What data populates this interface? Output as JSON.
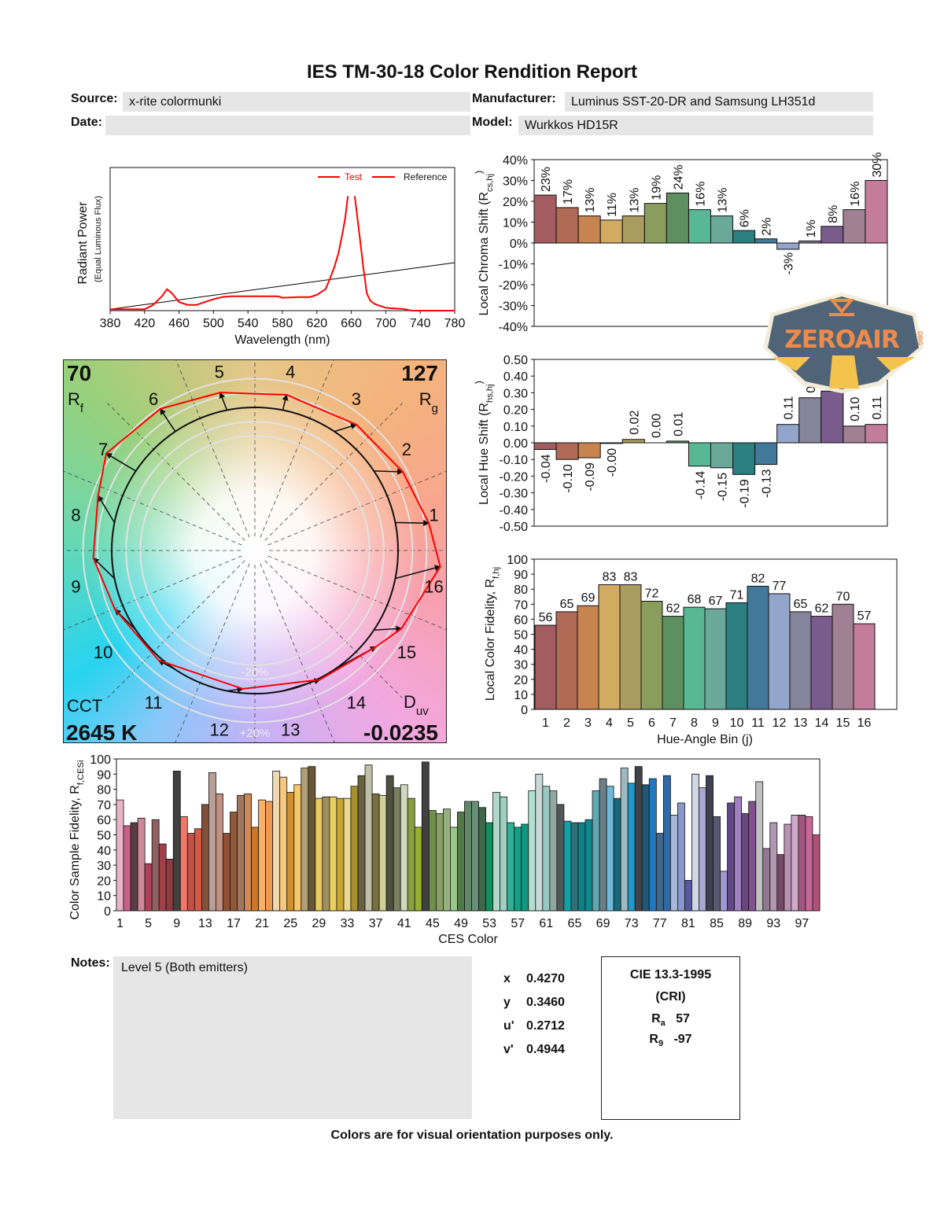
{
  "header": {
    "title": "IES TM-30-18 Color Rendition Report",
    "source_label": "Source:",
    "source_value": "x-rite colormunki",
    "manufacturer_label": "Manufacturer:",
    "manufacturer_value": "Luminus SST-20-DR and Samsung LH351d",
    "date_label": "Date:",
    "date_value": "",
    "model_label": "Model:",
    "model_value": "Wurkkos HD15R"
  },
  "watermark": {
    "text": "ZEROAIR",
    "suffix": "ORG",
    "colors": {
      "badge": "#4f6577",
      "letters": "#f08a4a",
      "rays": "#f4c34e",
      "border": "#f3ecd8"
    }
  },
  "vector_graphic": {
    "rf_value": "70",
    "rf_label": "R",
    "rf_sub": "f",
    "rg_value": "127",
    "rg_label": "R",
    "rg_sub": "g",
    "cct_label": "CCT",
    "cct_value": "2645 K",
    "duv_label": "D",
    "duv_sub": "uv",
    "duv_value": "-0.0235",
    "ring_plus_label": "+20%",
    "ring_minus_label": "-20%",
    "bin_labels": [
      "1",
      "2",
      "3",
      "4",
      "5",
      "6",
      "7",
      "8",
      "9",
      "10",
      "11",
      "12",
      "13",
      "14",
      "15",
      "16"
    ]
  },
  "chart_data": [
    {
      "id": "spectrum",
      "type": "line",
      "xlabel": "Wavelength (nm)",
      "ylabel": "Radiant Power",
      "ylabel2": "(Equal Luminous Flux)",
      "xlim": [
        380,
        780
      ],
      "xticks": [
        380,
        420,
        460,
        500,
        540,
        580,
        620,
        660,
        700,
        740,
        780
      ],
      "legend": {
        "placement": "top-right",
        "entries": [
          "Test",
          "Reference"
        ]
      },
      "series": [
        {
          "name": "Test",
          "color": "#ff0000",
          "x": [
            380,
            400,
            420,
            430,
            440,
            446,
            452,
            460,
            470,
            480,
            490,
            500,
            510,
            520,
            540,
            560,
            575,
            580,
            600,
            612,
            620,
            630,
            635,
            640,
            645,
            650,
            653,
            656,
            null,
            664,
            667,
            670,
            674,
            678,
            682,
            686,
            690,
            700,
            710,
            720,
            730,
            740,
            760,
            780
          ],
          "y": [
            0.01,
            0.01,
            0.01,
            0.04,
            0.1,
            0.15,
            0.12,
            0.06,
            0.04,
            0.04,
            0.06,
            0.08,
            0.095,
            0.1,
            0.1,
            0.1,
            0.1,
            0.09,
            0.095,
            0.095,
            0.11,
            0.15,
            0.22,
            0.3,
            0.4,
            0.55,
            0.65,
            0.8,
            null,
            0.8,
            0.65,
            0.5,
            0.3,
            0.12,
            0.07,
            0.05,
            0.04,
            0.02,
            0.015,
            0.012,
            0.0,
            0.0,
            0.0,
            0.0
          ]
        },
        {
          "name": "Reference",
          "color": "#000000",
          "x": [
            380,
            780
          ],
          "y": [
            0.01,
            0.335
          ]
        }
      ]
    },
    {
      "id": "chroma_shift",
      "type": "bar",
      "ylabel": "Local Chroma Shift (R",
      "ylabel_sub": "cs,hj",
      "ylabel_end": ")",
      "ylim": [
        -40,
        40
      ],
      "yticks": [
        40,
        30,
        20,
        10,
        0,
        -10,
        -20,
        -30,
        -40
      ],
      "unit": "%",
      "categories": [
        1,
        2,
        3,
        4,
        5,
        6,
        7,
        8,
        9,
        10,
        11,
        12,
        13,
        14,
        15,
        16
      ],
      "values": [
        23,
        17,
        13,
        11,
        13,
        19,
        24,
        16,
        13,
        6,
        2,
        -3,
        1,
        8,
        16,
        30
      ]
    },
    {
      "id": "hue_shift",
      "type": "bar",
      "ylabel": "Local Hue Shift (R",
      "ylabel_sub": "hs,hj",
      "ylabel_end": ")",
      "ylim": [
        -0.5,
        0.5
      ],
      "yticks": [
        "0.50",
        "0.40",
        "0.30",
        "0.20",
        "0.10",
        "0.00",
        "-0.10",
        "-0.20",
        "-0.30",
        "-0.40",
        "-0.50"
      ],
      "categories": [
        1,
        2,
        3,
        4,
        5,
        6,
        7,
        8,
        9,
        10,
        11,
        12,
        13,
        14,
        15,
        16
      ],
      "values": [
        -0.04,
        -0.1,
        -0.09,
        -0.004,
        0.02,
        0.0,
        0.01,
        -0.14,
        -0.15,
        -0.19,
        -0.13,
        0.11,
        0.27,
        0.31,
        0.1,
        0.11
      ],
      "labels": [
        "-0.04",
        "-0.10",
        "-0.09",
        "-0.00",
        "0.02",
        "0.00",
        "0.01",
        "-0.14",
        "-0.15",
        "-0.19",
        "-0.13",
        "0.11",
        "0.27",
        "0.31",
        "0.10",
        "0.11"
      ]
    },
    {
      "id": "local_fidelity",
      "type": "bar",
      "xlabel": "Hue-Angle Bin (j)",
      "ylabel": "Local Color Fidelity, R",
      "ylabel_sub": "f,hj",
      "ylim": [
        0,
        100
      ],
      "yticks": [
        0,
        10,
        20,
        30,
        40,
        50,
        60,
        70,
        80,
        90,
        100
      ],
      "categories": [
        1,
        2,
        3,
        4,
        5,
        6,
        7,
        8,
        9,
        10,
        11,
        12,
        13,
        14,
        15,
        16
      ],
      "values": [
        56,
        65,
        69,
        83,
        83,
        72,
        62,
        68,
        67,
        71,
        82,
        77,
        65,
        62,
        70,
        57
      ]
    },
    {
      "id": "ces_fidelity",
      "type": "bar",
      "xlabel": "CES Color",
      "ylabel": "Color Sample Fidelity, R",
      "ylabel_sub": "f,CESi",
      "ylim": [
        0,
        100
      ],
      "yticks": [
        0,
        10,
        20,
        30,
        40,
        50,
        60,
        70,
        80,
        90,
        100
      ],
      "xticks": [
        1,
        5,
        9,
        13,
        17,
        21,
        25,
        29,
        33,
        37,
        41,
        45,
        49,
        53,
        57,
        61,
        65,
        69,
        73,
        77,
        81,
        85,
        89,
        93,
        97
      ],
      "values": [
        73,
        56,
        58,
        61,
        31,
        60,
        44,
        34,
        92,
        62,
        51,
        54,
        70,
        91,
        77,
        51,
        65,
        76,
        77,
        55,
        73,
        72,
        92,
        88,
        78,
        83,
        94,
        95,
        74,
        75,
        75,
        74,
        74,
        82,
        89,
        96,
        77,
        76,
        89,
        81,
        83,
        74,
        55,
        98,
        66,
        64,
        67,
        55,
        65,
        72,
        72,
        68,
        58,
        78,
        75,
        58,
        55,
        57,
        79,
        90,
        82,
        79,
        70,
        59,
        58,
        58,
        60,
        79,
        87,
        82,
        74,
        94,
        84,
        95,
        83,
        87,
        51,
        89,
        63,
        71,
        20,
        90,
        81,
        89,
        62,
        26,
        71,
        75,
        64,
        72,
        85,
        41,
        58,
        37,
        57,
        63,
        63,
        62,
        50
      ],
      "colors": [
        "#e8b4c8",
        "#c86088",
        "#5a3c44",
        "#d08898",
        "#b04058",
        "#906060",
        "#a04048",
        "#8c3c40",
        "#404040",
        "#f07868",
        "#c05048",
        "#d85848",
        "#805038",
        "#b8a098",
        "#c09080",
        "#905038",
        "#905838",
        "#a07860",
        "#d08858",
        "#c87828",
        "#f8b068",
        "#f09850",
        "#f0d8b0",
        "#f8c880",
        "#d09030",
        "#f8c868",
        "#b0a078",
        "#685838",
        "#e8c860",
        "#a09060",
        "#e8d060",
        "#c8a830",
        "#e8d890",
        "#a89030",
        "#686040",
        "#c0c0a8",
        "#787040",
        "#d0d098",
        "#505040",
        "#788060",
        "#d0d8c0",
        "#88a040",
        "#98b030",
        "#404040",
        "#709048",
        "#88a068",
        "#98b080",
        "#98c888",
        "#507848",
        "#608868",
        "#689078",
        "#406848",
        "#109060",
        "#b0d8c8",
        "#a0d0c0",
        "#30b098",
        "#10a088",
        "#109880",
        "#b0e0d0",
        "#c8d8d8",
        "#98c8c0",
        "#90a8a0",
        "#505858",
        "#10a0a8",
        "#307078",
        "#108088",
        "#108890",
        "#60a8b0",
        "#6a8088",
        "#70b8d8",
        "#186878",
        "#a0b8c0",
        "#2098c8",
        "#404448",
        "#205878",
        "#2078c0",
        "#406888",
        "#3068a8",
        "#a8b8d8",
        "#8898c8",
        "#5858a0",
        "#d0d8e8",
        "#a8a8d0",
        "#404050",
        "#585870",
        "#a098d0",
        "#604888",
        "#a080c0",
        "#684878",
        "#805090",
        "#c0c0c0",
        "#907890",
        "#b098b0",
        "#784868",
        "#b890b0",
        "#d0a8c8",
        "#a05880",
        "#c86898",
        "#b05078"
      ]
    }
  ],
  "bin_colors": [
    "#a35c60",
    "#b06a55",
    "#c8844f",
    "#d2ab62",
    "#ab9c5f",
    "#8b9d5c",
    "#5e8f60",
    "#58b895",
    "#6aa89a",
    "#2c7f80",
    "#42789a",
    "#93a5cb",
    "#86839d",
    "#7a5c8c",
    "#9f8193",
    "#c37d9b"
  ],
  "notes": {
    "label": "Notes:",
    "text": "Level 5 (Both emitters)"
  },
  "chromaticity": [
    {
      "label": "x",
      "value": "0.4270"
    },
    {
      "label": "y",
      "value": "0.3460"
    },
    {
      "label": "u'",
      "value": "0.2712"
    },
    {
      "label": "v'",
      "value": "0.4944"
    }
  ],
  "cri": {
    "title": "CIE 13.3-1995",
    "subtitle": "(CRI)",
    "ra_label": "R",
    "ra_sub": "a",
    "ra_value": "57",
    "r9_label": "R",
    "r9_sub": "9",
    "r9_value": "-97"
  },
  "footer": "Colors are for visual orientation purposes only."
}
